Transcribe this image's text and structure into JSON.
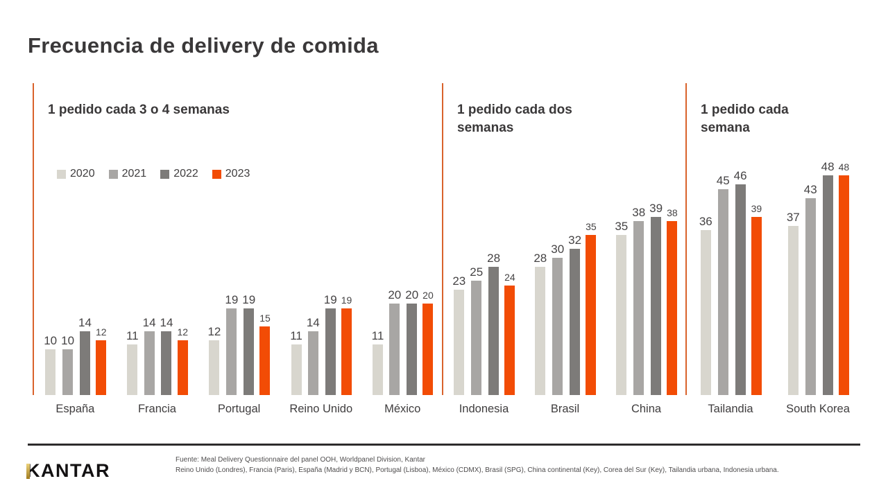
{
  "title": "Frecuencia de delivery de comida",
  "colors": {
    "accent_orange": "#f24c05",
    "separator_line": "#d9622b",
    "text_dark": "#3a3839",
    "footer_rule": "#2d2b2c",
    "logo_gold": "#c9a227"
  },
  "chart_data": {
    "type": "bar",
    "title": "Frecuencia de delivery de comida",
    "ylim": [
      0,
      50
    ],
    "grid": false,
    "legend_position": "top-left inside first section",
    "series": [
      {
        "name": "2020",
        "color": "#d8d6ce"
      },
      {
        "name": "2021",
        "color": "#a8a6a4"
      },
      {
        "name": "2022",
        "color": "#7d7b79"
      },
      {
        "name": "2023",
        "color": "#f24c05"
      }
    ],
    "sections": [
      {
        "label": "1 pedido cada 3 o 4 semanas",
        "groups": [
          {
            "country": "España",
            "values": [
              10,
              10,
              14,
              12
            ]
          },
          {
            "country": "Francia",
            "values": [
              11,
              14,
              14,
              12
            ]
          },
          {
            "country": "Portugal",
            "values": [
              12,
              19,
              19,
              15
            ]
          },
          {
            "country": "Reino Unido",
            "values": [
              11,
              14,
              19,
              19
            ]
          },
          {
            "country": "México",
            "values": [
              11,
              20,
              20,
              20
            ]
          }
        ]
      },
      {
        "label": "1 pedido cada dos semanas",
        "groups": [
          {
            "country": "Indonesia",
            "values": [
              23,
              25,
              28,
              24
            ]
          },
          {
            "country": "Brasil",
            "values": [
              28,
              30,
              32,
              35
            ]
          },
          {
            "country": "China",
            "values": [
              35,
              38,
              39,
              38
            ]
          }
        ]
      },
      {
        "label": "1 pedido cada semana",
        "groups": [
          {
            "country": "Tailandia",
            "values": [
              36,
              45,
              46,
              39
            ]
          },
          {
            "country": "South Korea",
            "values": [
              37,
              43,
              48,
              48
            ]
          }
        ]
      }
    ]
  },
  "footer": {
    "logo_text": "KANTAR",
    "source_line1": "Fuente: Meal Delivery Questionnaire del panel OOH, Worldpanel Division, Kantar",
    "source_line2": "Reino Unido (Londres), Francia (Paris), España (Madrid y BCN), Portugal (Lisboa), México (CDMX), Brasil (SPG), China continental (Key), Corea del Sur (Key), Tailandia urbana, Indonesia urbana."
  }
}
